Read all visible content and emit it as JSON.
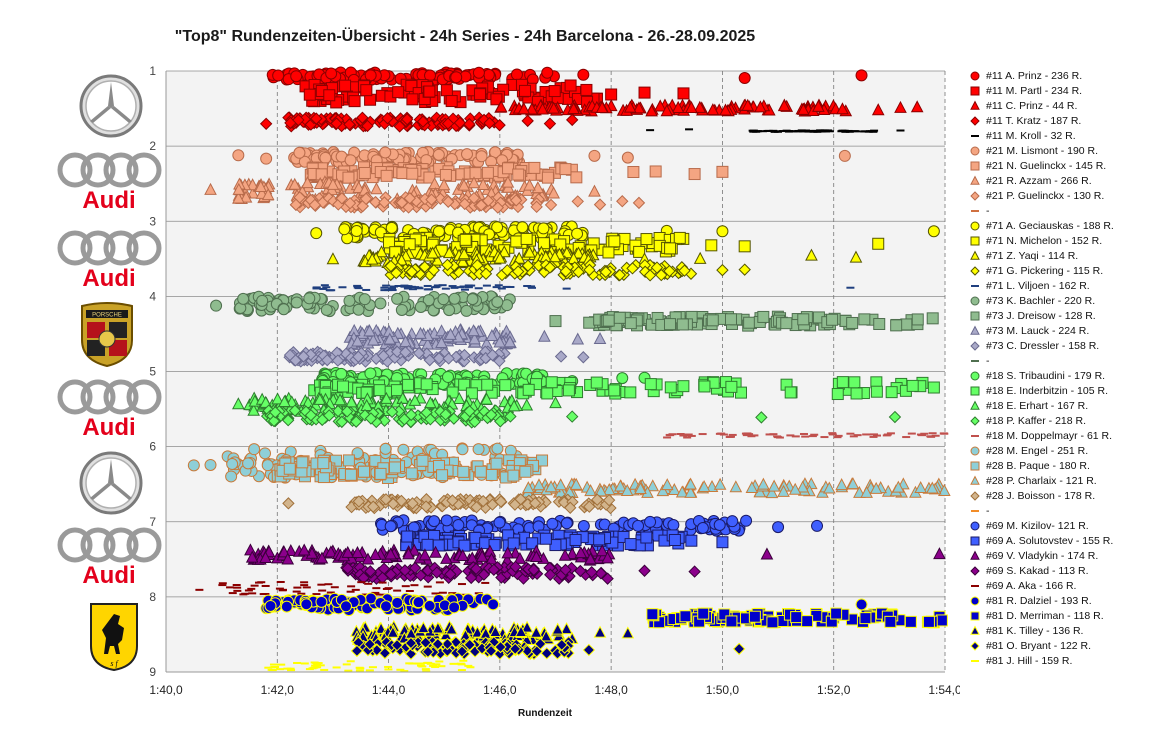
{
  "title": "\"Top8\" Rundenzeiten-Übersicht - 24h Series - 24h Barcelona - 26.-28.09.2025",
  "logos": [
    {
      "name": "mercedes-logo-icon",
      "brand": "Mercedes-Benz"
    },
    {
      "name": "audi-logo-icon",
      "brand": "Audi",
      "text": "Audi"
    },
    {
      "name": "audi-logo-icon",
      "brand": "Audi",
      "text": "Audi"
    },
    {
      "name": "porsche-logo-icon",
      "brand": "Porsche",
      "text": "PORSCHE"
    },
    {
      "name": "audi-logo-icon",
      "brand": "Audi",
      "text": "Audi"
    },
    {
      "name": "mercedes-logo-icon",
      "brand": "Mercedes-Benz"
    },
    {
      "name": "audi-logo-icon",
      "brand": "Audi",
      "text": "Audi"
    },
    {
      "name": "ferrari-logo-icon",
      "brand": "Ferrari"
    }
  ],
  "chart_data": {
    "type": "scatter",
    "title": "\"Top8\" Rundenzeiten-Übersicht - 24h Series - 24h Barcelona - 26.-28.09.2025",
    "xlabel": "Rundenzeit",
    "ylabel": "",
    "x_unit": "seconds",
    "xlim": [
      100,
      114
    ],
    "ylim": [
      1,
      9
    ],
    "y_reversed": true,
    "x_ticks": [
      100,
      102,
      104,
      106,
      108,
      110,
      112,
      114
    ],
    "x_tick_labels": [
      "1:40,0",
      "1:42,0",
      "1:44,0",
      "1:46,0",
      "1:48,0",
      "1:50,0",
      "1:52,0",
      "1:54,0"
    ],
    "y_ticks": [
      1,
      2,
      3,
      4,
      5,
      6,
      7,
      8,
      9
    ],
    "grid": true,
    "legend_position": "right",
    "series": [
      {
        "name": "#11 A. Prinz - 236 R.",
        "marker": "circle",
        "fill": "#ff0000",
        "stroke": "#8b0000",
        "y": 1.07,
        "ymin": 1.02,
        "ymax": 1.12,
        "dense": [
          101.9,
          107.0
        ],
        "outliers": [
          107.5,
          110.4,
          112.5
        ]
      },
      {
        "name": "#11 M. Partl - 234 R.",
        "marker": "square",
        "fill": "#ff0000",
        "stroke": "#8b0000",
        "y": 1.3,
        "ymin": 1.18,
        "ymax": 1.42,
        "dense": [
          102.5,
          107.8
        ],
        "outliers": [
          108.0,
          108.6,
          109.3
        ]
      },
      {
        "name": "#11 C. Prinz - 44 R.",
        "marker": "triangle",
        "fill": "#ff0000",
        "stroke": "#8b0000",
        "y": 1.5,
        "ymin": 1.46,
        "ymax": 1.54,
        "dense": [
          106.0,
          112.3
        ],
        "outliers": [
          112.8,
          113.2,
          113.5
        ]
      },
      {
        "name": "#11 T. Kratz - 187 R.",
        "marker": "diamond",
        "fill": "#ff0000",
        "stroke": "#8b0000",
        "y": 1.68,
        "ymin": 1.62,
        "ymax": 1.74,
        "dense": [
          102.2,
          106.2
        ],
        "outliers": [
          101.8,
          106.5,
          106.9,
          107.3
        ]
      },
      {
        "name": "#11 M. Kroll - 32 R.",
        "marker": "dash",
        "fill": "#000000",
        "stroke": "#000000",
        "y": 1.8,
        "ymin": 1.79,
        "ymax": 1.81,
        "dense": [
          110.5,
          112.8
        ],
        "outliers": [
          108.7,
          109.4,
          113.2
        ]
      },
      {
        "name": "#21 M. Lismont - 190 R.",
        "marker": "circle",
        "fill": "#f4a582",
        "stroke": "#b86b4b",
        "y": 2.15,
        "ymin": 2.08,
        "ymax": 2.22,
        "dense": [
          102.3,
          106.5
        ],
        "outliers": [
          101.3,
          101.8,
          107.7,
          108.3,
          112.2
        ]
      },
      {
        "name": "#21 N. Guelinckx - 145 R.",
        "marker": "square",
        "fill": "#f4a582",
        "stroke": "#b86b4b",
        "y": 2.35,
        "ymin": 2.28,
        "ymax": 2.42,
        "dense": [
          102.6,
          107.4
        ],
        "outliers": [
          108.4,
          108.8,
          109.5,
          110.0
        ]
      },
      {
        "name": "#21 R. Azzam - 266 R.",
        "marker": "triangle",
        "fill": "#f4a582",
        "stroke": "#b86b4b",
        "y": 2.58,
        "ymin": 2.48,
        "ymax": 2.72,
        "dense": [
          101.3,
          107.0
        ],
        "outliers": [
          100.8,
          107.7
        ]
      },
      {
        "name": "#21 P. Guelinckx - 130 R.",
        "marker": "diamond",
        "fill": "#f4a582",
        "stroke": "#b86b4b",
        "y": 2.75,
        "ymin": 2.68,
        "ymax": 2.82,
        "dense": [
          102.3,
          107.0
        ],
        "outliers": [
          107.4,
          107.8,
          108.2,
          108.5
        ]
      },
      {
        "name": "-",
        "marker": "dash",
        "fill": "#d07040",
        "stroke": "#d07040",
        "y": 2.9,
        "ymin": 2.9,
        "ymax": 2.9,
        "dense": [],
        "outliers": []
      },
      {
        "name": "#71 A. Geciauskas - 188 R.",
        "marker": "circle",
        "fill": "#ffff00",
        "stroke": "#555500",
        "y": 3.15,
        "ymin": 3.07,
        "ymax": 3.23,
        "dense": [
          103.2,
          107.5
        ],
        "outliers": [
          102.7,
          109.0,
          110.0,
          113.8
        ]
      },
      {
        "name": "#71 N. Michelon - 152 R.",
        "marker": "square",
        "fill": "#ffff00",
        "stroke": "#555500",
        "y": 3.32,
        "ymin": 3.22,
        "ymax": 3.42,
        "dense": [
          104.0,
          109.3
        ],
        "outliers": [
          109.8,
          110.4,
          112.8
        ]
      },
      {
        "name": "#71 Z. Yaqi - 114 R.",
        "marker": "triangle",
        "fill": "#ffff00",
        "stroke": "#555500",
        "y": 3.48,
        "ymin": 3.4,
        "ymax": 3.56,
        "dense": [
          103.5,
          107.7
        ],
        "outliers": [
          103.0,
          108.6,
          109.6,
          111.6,
          112.4
        ]
      },
      {
        "name": "#71 G. Pickering - 115 R.",
        "marker": "diamond",
        "fill": "#ffff00",
        "stroke": "#555500",
        "y": 3.64,
        "ymin": 3.58,
        "ymax": 3.72,
        "dense": [
          104.0,
          109.5
        ],
        "outliers": [
          110.0,
          110.4
        ]
      },
      {
        "name": "#71 L. Viljoen - 162 R.",
        "marker": "dash",
        "fill": "#1f3f7f",
        "stroke": "#1f3f7f",
        "y": 3.88,
        "ymin": 3.85,
        "ymax": 3.92,
        "dense": [
          102.7,
          106.6
        ],
        "outliers": [
          107.2,
          112.3
        ]
      },
      {
        "name": "#73 K. Bachler - 220 R.",
        "marker": "circle",
        "fill": "#8fbc8f",
        "stroke": "#4f6f4f",
        "y": 4.1,
        "ymin": 4.0,
        "ymax": 4.2,
        "dense": [
          101.3,
          106.2
        ],
        "outliers": [
          100.9
        ]
      },
      {
        "name": "#73 J. Dreisow - 128 R.",
        "marker": "square",
        "fill": "#8fbc8f",
        "stroke": "#4f6f4f",
        "y": 4.33,
        "ymin": 4.27,
        "ymax": 4.39,
        "dense": [
          107.6,
          113.8
        ],
        "outliers": [
          107.0
        ]
      },
      {
        "name": "#73 M. Lauck - 224 R.",
        "marker": "triangle",
        "fill": "#a9a9c8",
        "stroke": "#6a6a8f",
        "y": 4.55,
        "ymin": 4.45,
        "ymax": 4.65,
        "dense": [
          103.3,
          106.2
        ],
        "outliers": [
          106.8,
          107.4,
          107.8
        ]
      },
      {
        "name": "#73 C. Dressler - 158 R.",
        "marker": "diamond",
        "fill": "#a9a9c8",
        "stroke": "#6a6a8f",
        "y": 4.8,
        "ymin": 4.73,
        "ymax": 4.87,
        "dense": [
          102.2,
          106.1
        ],
        "outliers": [
          107.1,
          107.5
        ]
      },
      {
        "name": "-",
        "marker": "dash",
        "fill": "#4f6f4f",
        "stroke": "#4f6f4f",
        "y": 4.95,
        "ymin": 4.95,
        "ymax": 4.95,
        "dense": [],
        "outliers": []
      },
      {
        "name": "#18 S. Tribaudini - 179 R.",
        "marker": "circle",
        "fill": "#66ff66",
        "stroke": "#2e7d2e",
        "y": 5.1,
        "ymin": 5.02,
        "ymax": 5.18,
        "dense": [
          102.8,
          106.8
        ],
        "outliers": [
          107.3,
          108.2,
          108.6
        ]
      },
      {
        "name": "#18 E. Inderbitzin - 105 R.",
        "marker": "square",
        "fill": "#66ff66",
        "stroke": "#2e7d2e",
        "y": 5.22,
        "ymin": 5.14,
        "ymax": 5.3,
        "dense": [
          102.6,
          113.6
        ],
        "outliers": [
          113.8
        ]
      },
      {
        "name": "#18 E. Erhart - 167 R.",
        "marker": "triangle",
        "fill": "#66ff66",
        "stroke": "#2e7d2e",
        "y": 5.45,
        "ymin": 5.36,
        "ymax": 5.54,
        "dense": [
          101.5,
          106.5
        ],
        "outliers": [
          101.3,
          107.0
        ]
      },
      {
        "name": "#18 P. Kaffer - 218 R.",
        "marker": "diamond",
        "fill": "#66ff66",
        "stroke": "#2e7d2e",
        "y": 5.6,
        "ymin": 5.52,
        "ymax": 5.68,
        "dense": [
          101.8,
          106.2
        ],
        "outliers": [
          107.3,
          110.7,
          113.1
        ]
      },
      {
        "name": "#18 M. Doppelmayr - 61 R.",
        "marker": "dash",
        "fill": "#c0504d",
        "stroke": "#c0504d",
        "y": 5.85,
        "ymin": 5.82,
        "ymax": 5.88,
        "dense": [
          109.0,
          114.0
        ],
        "outliers": []
      },
      {
        "name": "#28 M. Engel - 251 R.",
        "marker": "circle",
        "fill": "#8ecfd8",
        "stroke": "#c87a3a",
        "y": 6.22,
        "ymin": 6.02,
        "ymax": 6.42,
        "dense": [
          101.1,
          106.3
        ],
        "outliers": [
          100.5,
          100.8
        ]
      },
      {
        "name": "#28 B. Paque - 180 R.",
        "marker": "square",
        "fill": "#8ecfd8",
        "stroke": "#c87a3a",
        "y": 6.3,
        "ymin": 6.18,
        "ymax": 6.42,
        "dense": [
          102.0,
          106.8
        ],
        "outliers": []
      },
      {
        "name": "#28 P. Charlaix - 121 R.",
        "marker": "triangle",
        "fill": "#8ecfd8",
        "stroke": "#c87a3a",
        "y": 6.55,
        "ymin": 6.5,
        "ymax": 6.62,
        "dense": [
          106.5,
          114.0
        ],
        "outliers": []
      },
      {
        "name": "#28 J. Boisson - 178 R.",
        "marker": "diamond",
        "fill": "#d2b48c",
        "stroke": "#a0703a",
        "y": 6.75,
        "ymin": 6.7,
        "ymax": 6.82,
        "dense": [
          103.3,
          108.0
        ],
        "outliers": [
          102.2
        ]
      },
      {
        "name": "-",
        "marker": "dash",
        "fill": "#f28c28",
        "stroke": "#f28c28",
        "y": 6.9,
        "ymin": 6.9,
        "ymax": 6.9,
        "dense": [],
        "outliers": []
      },
      {
        "name": "#69 M. Kizilov- 121 R.",
        "marker": "circle",
        "fill": "#3f5fff",
        "stroke": "#1a1a66",
        "y": 7.05,
        "ymin": 6.98,
        "ymax": 7.12,
        "dense": [
          103.8,
          110.5
        ],
        "outliers": [
          111.0,
          111.7
        ]
      },
      {
        "name": "#69 A. Solutovstev - 155 R.",
        "marker": "square",
        "fill": "#3f5fff",
        "stroke": "#1a1a66",
        "y": 7.25,
        "ymin": 7.18,
        "ymax": 7.32,
        "dense": [
          104.3,
          109.5
        ],
        "outliers": [
          110.0
        ]
      },
      {
        "name": "#69 V. Vladykin - 174 R.",
        "marker": "triangle",
        "fill": "#8b008b",
        "stroke": "#3a003a",
        "y": 7.45,
        "ymin": 7.38,
        "ymax": 7.52,
        "dense": [
          101.5,
          108.0
        ],
        "outliers": [
          110.8,
          113.9
        ]
      },
      {
        "name": "#69 S. Kakad - 113 R.",
        "marker": "diamond",
        "fill": "#8b008b",
        "stroke": "#3a003a",
        "y": 7.68,
        "ymin": 7.6,
        "ymax": 7.76,
        "dense": [
          103.2,
          108.0
        ],
        "outliers": [
          108.6,
          109.5
        ]
      },
      {
        "name": "#69 A. Aka - 166 R.",
        "marker": "dash",
        "fill": "#8b0000",
        "stroke": "#8b0000",
        "y": 7.88,
        "ymin": 7.8,
        "ymax": 7.98,
        "dense": [
          101.0,
          105.8
        ],
        "outliers": [
          100.6
        ]
      },
      {
        "name": "#81 R. Dalziel - 193 R.",
        "marker": "circle",
        "fill": "#0000cc",
        "stroke": "#ffff00",
        "y": 8.1,
        "ymin": 8.02,
        "ymax": 8.18,
        "dense": [
          101.8,
          105.9
        ],
        "outliers": [
          112.5
        ]
      },
      {
        "name": "#81 D. Merriman - 118 R.",
        "marker": "square",
        "fill": "#0000cc",
        "stroke": "#ffff00",
        "y": 8.28,
        "ymin": 8.22,
        "ymax": 8.34,
        "dense": [
          108.7,
          114.0
        ],
        "outliers": []
      },
      {
        "name": "#81 K. Tilley - 136 R.",
        "marker": "triangle",
        "fill": "#000080",
        "stroke": "#ffff00",
        "y": 8.48,
        "ymin": 8.4,
        "ymax": 8.58,
        "dense": [
          103.4,
          107.3
        ],
        "outliers": [
          107.8,
          108.3
        ]
      },
      {
        "name": "#81 O. Bryant - 122 R.",
        "marker": "diamond",
        "fill": "#000080",
        "stroke": "#ffff00",
        "y": 8.68,
        "ymin": 8.6,
        "ymax": 8.76,
        "dense": [
          103.4,
          107.3
        ],
        "outliers": [
          107.6,
          110.3
        ]
      },
      {
        "name": "#81 J. Hill - 159 R.",
        "marker": "dash",
        "fill": "#ffff00",
        "stroke": "#ffff00",
        "y": 8.92,
        "ymin": 8.85,
        "ymax": 8.99,
        "dense": [
          101.8,
          105.5
        ],
        "outliers": []
      }
    ]
  }
}
